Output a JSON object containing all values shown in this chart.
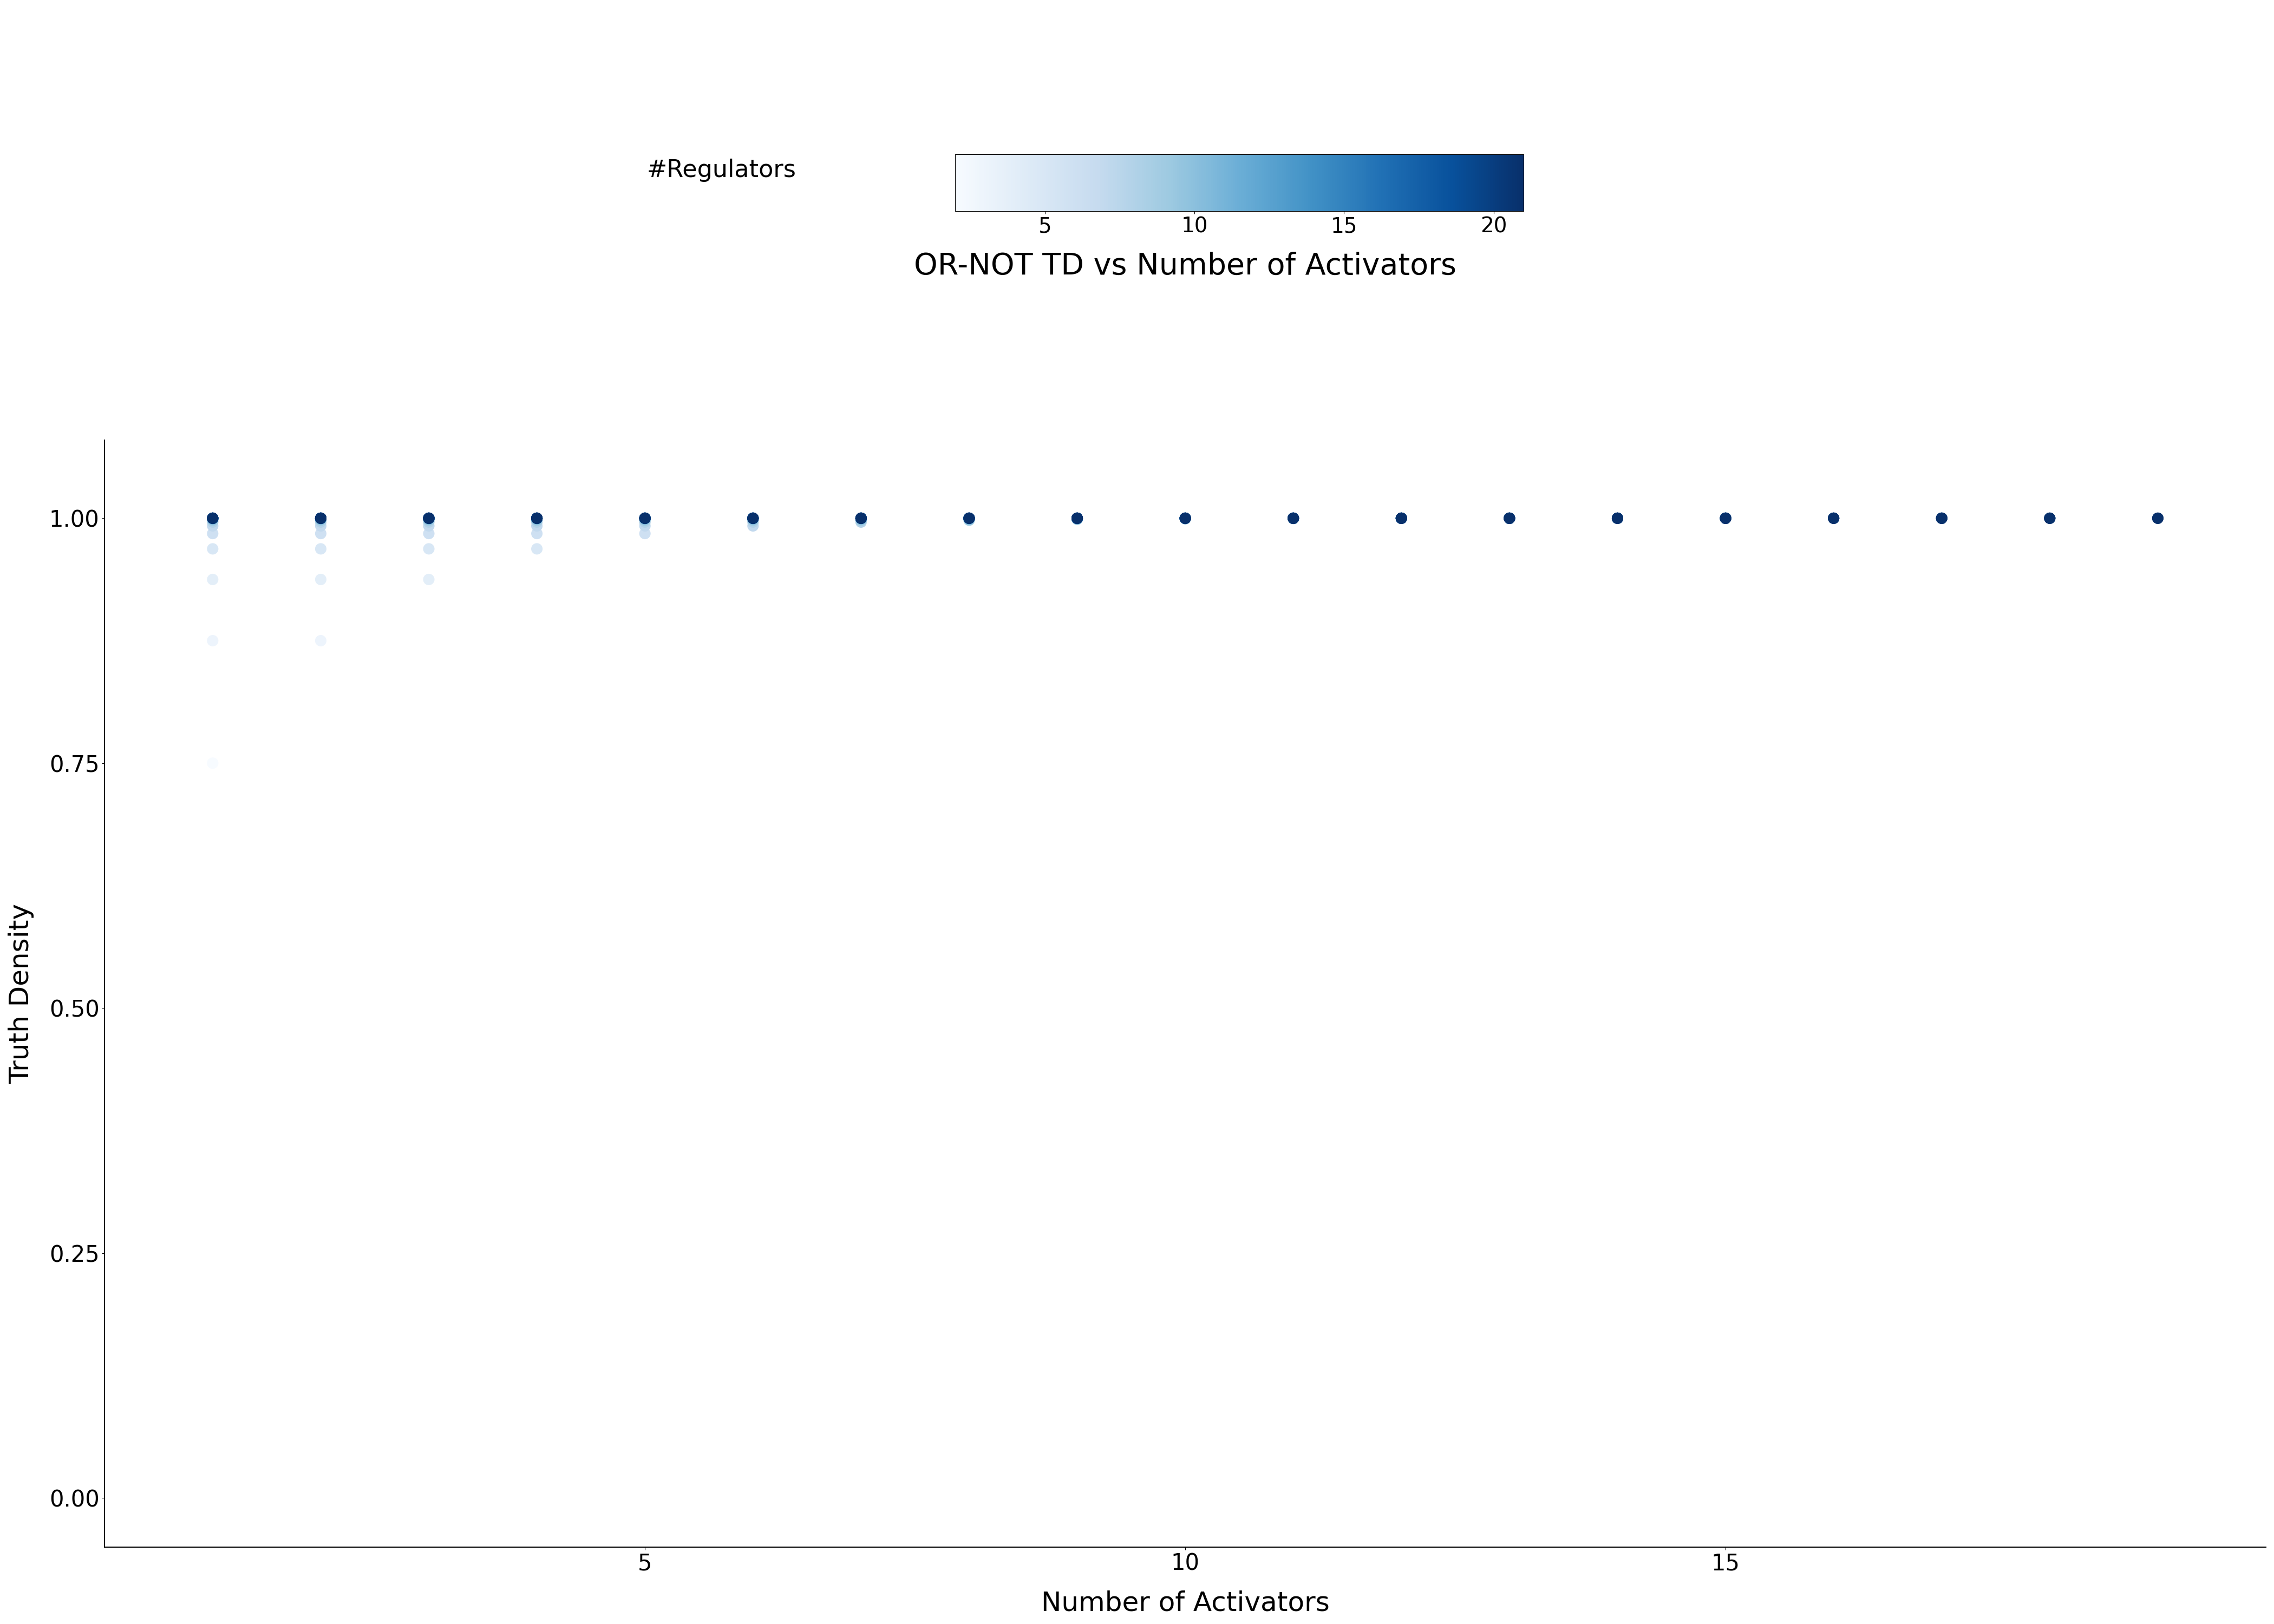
{
  "title": "OR-NOT TD vs Number of Activators",
  "xlabel": "Number of Activators",
  "ylabel": "Truth Density",
  "colorbar_label": "#Regulators",
  "colorbar_ticks": [
    5,
    10,
    15,
    20
  ],
  "n_min": 2,
  "n_max": 21,
  "a_min": 1,
  "a_max": 19,
  "min_inhibitors": 1,
  "title_fontsize": 40,
  "label_fontsize": 36,
  "tick_fontsize": 30,
  "colorbar_fontsize": 32,
  "marker_size": 200,
  "background_color": "#ffffff",
  "cmap": "Blues",
  "ylim": [
    -0.05,
    1.08
  ],
  "xlim": [
    0,
    20
  ],
  "yticks": [
    0.0,
    0.25,
    0.5,
    0.75,
    1.0
  ]
}
